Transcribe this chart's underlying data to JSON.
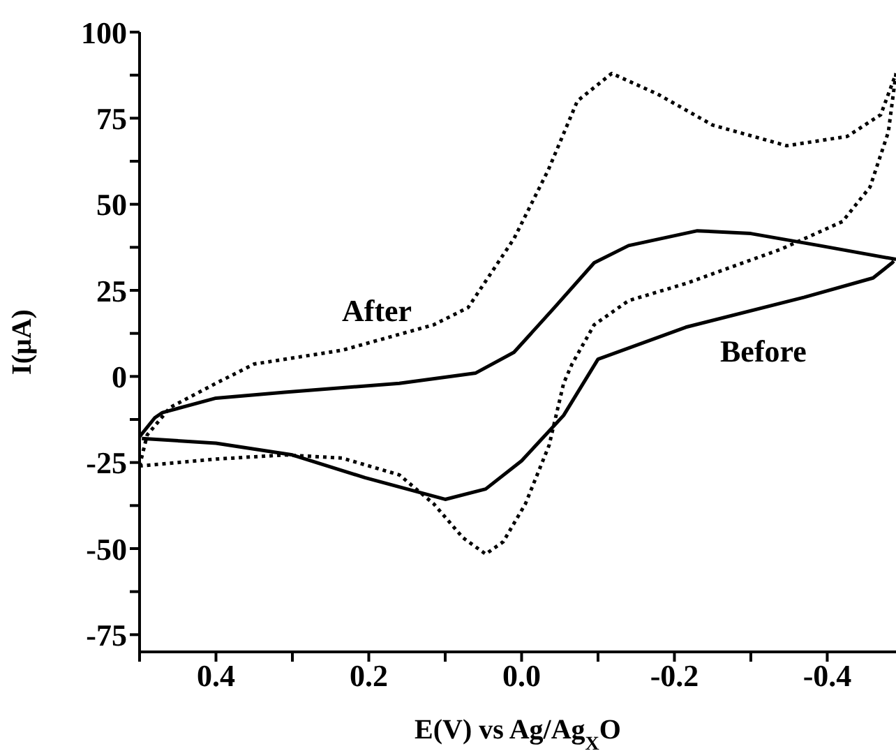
{
  "chart_data": {
    "type": "line",
    "xlabel": "E(V) vs Ag/Ag$_{X}$O",
    "ylabel": "I(μA)",
    "xlim": [
      0.5,
      -0.49
    ],
    "ylim": [
      -80,
      100
    ],
    "xticks": [
      {
        "value": 0.5,
        "label": null
      },
      0.4,
      {
        "value": 0.3,
        "label": null
      },
      0.2,
      {
        "value": 0.1,
        "label": null
      },
      {
        "value": 0,
        "label": "0.0"
      },
      {
        "value": -0.1,
        "label": null
      },
      -0.2,
      {
        "value": -0.3,
        "label": null
      },
      -0.4
    ],
    "yticks": [
      -75,
      {
        "value": -62.5,
        "label": null
      },
      -50,
      {
        "value": -37.5,
        "label": null
      },
      -25,
      {
        "value": -12.5,
        "label": null
      },
      0,
      {
        "value": 12.5,
        "label": null
      },
      25,
      {
        "value": 37.5,
        "label": null
      },
      50,
      {
        "value": 62.5,
        "label": null
      },
      75,
      {
        "value": 87.5,
        "label": null
      },
      100
    ],
    "grid": false,
    "legend": false,
    "marker": "none",
    "series": [
      {
        "name": "Before",
        "color": "#000000",
        "line_style": "solid",
        "x": [
          0.5,
          0.48,
          0.47,
          0.4,
          0.31,
          0.16,
          0.06,
          0.01,
          -0.043,
          -0.095,
          -0.14,
          -0.23,
          -0.3,
          -0.39,
          -0.49
        ],
        "values": [
          -17.5,
          -12,
          -10.5,
          -6.3,
          -4.6,
          -2,
          1,
          7,
          20,
          33,
          38,
          42.3,
          41.5,
          38,
          34
        ]
      },
      {
        "color": "#000000",
        "line_style": "solid",
        "x": [
          -0.487,
          -0.485,
          -0.46,
          -0.37,
          -0.215,
          -0.1,
          -0.055,
          0.0,
          0.047,
          0.1,
          0.205,
          0.3,
          0.4,
          0.497
        ],
        "values": [
          33.5,
          33,
          28.6,
          23,
          14.3,
          5,
          -11.3,
          -24.5,
          -32.7,
          -35.7,
          -29.4,
          -22.8,
          -19.4,
          -18
        ]
      },
      {
        "name": "After",
        "color": "#000000",
        "line_style": "dotted",
        "x": [
          0.5,
          0.49,
          0.46,
          0.4,
          0.35,
          0.235,
          0.115,
          0.07,
          0.01,
          -0.035,
          -0.073,
          -0.118,
          -0.178,
          -0.25,
          -0.347,
          -0.426,
          -0.47,
          -0.49
        ],
        "values": [
          -26,
          -17,
          -9,
          -2,
          3.6,
          7.6,
          15,
          20,
          40,
          60,
          80,
          88,
          82,
          73,
          67,
          69.7,
          76,
          88
        ]
      },
      {
        "color": "#000000",
        "line_style": "dotted",
        "x": [
          -0.49,
          -0.48,
          -0.456,
          -0.42,
          -0.34,
          -0.215,
          -0.14,
          -0.095,
          -0.066,
          -0.055,
          -0.036,
          -0.005,
          0.024,
          0.047,
          0.077,
          0.115,
          0.16,
          0.235,
          0.31,
          0.4,
          0.5
        ],
        "values": [
          88,
          71,
          55,
          45,
          37,
          27,
          22,
          15,
          3.6,
          -2,
          -20,
          -37,
          -48,
          -51.6,
          -46.8,
          -37,
          -28.6,
          -23.7,
          -22.8,
          -24,
          -26
        ]
      }
    ]
  }
}
